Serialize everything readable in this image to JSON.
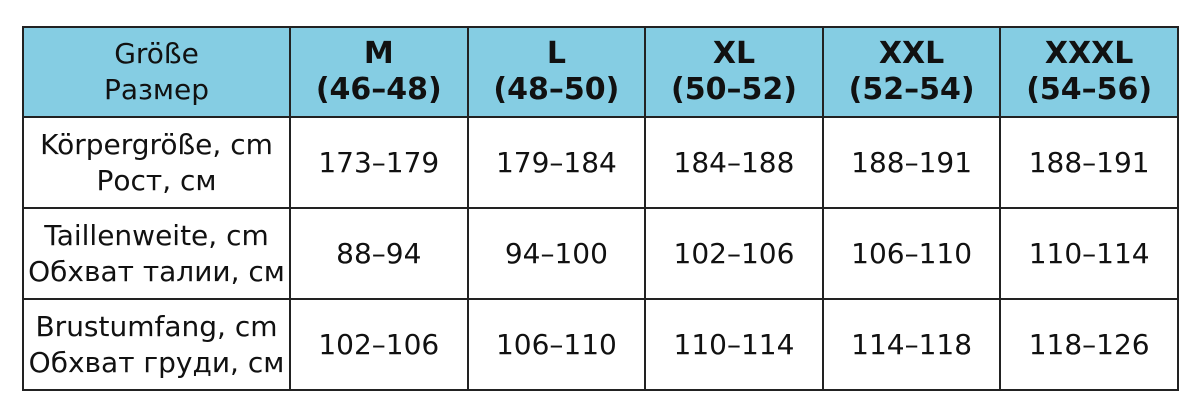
{
  "header": {
    "label": [
      "Größe",
      "Размер"
    ],
    "sizes": [
      {
        "name": "M",
        "range": "(46–48)"
      },
      {
        "name": "L",
        "range": "(48–50)"
      },
      {
        "name": "XL",
        "range": "(50–52)"
      },
      {
        "name": "XXL",
        "range": "(52–54)"
      },
      {
        "name": "XXXL",
        "range": "(54–56)"
      }
    ]
  },
  "rows": [
    {
      "label": [
        "Körpergröße, cm",
        "Рост, см"
      ],
      "values": [
        "173–179",
        "179–184",
        "184–188",
        "188–191",
        "188–191"
      ]
    },
    {
      "label": [
        "Taillenweite, cm",
        "Обхват талии, см"
      ],
      "values": [
        "88–94",
        "94–100",
        "102–106",
        "106–110",
        "110–114"
      ]
    },
    {
      "label": [
        "Brustumfang, cm",
        "Обхват груди, см"
      ],
      "values": [
        "102–106",
        "106–110",
        "110–114",
        "114–118",
        "118–126"
      ]
    }
  ],
  "colors": {
    "header_bg": "#85cde3",
    "border": "#222222"
  }
}
